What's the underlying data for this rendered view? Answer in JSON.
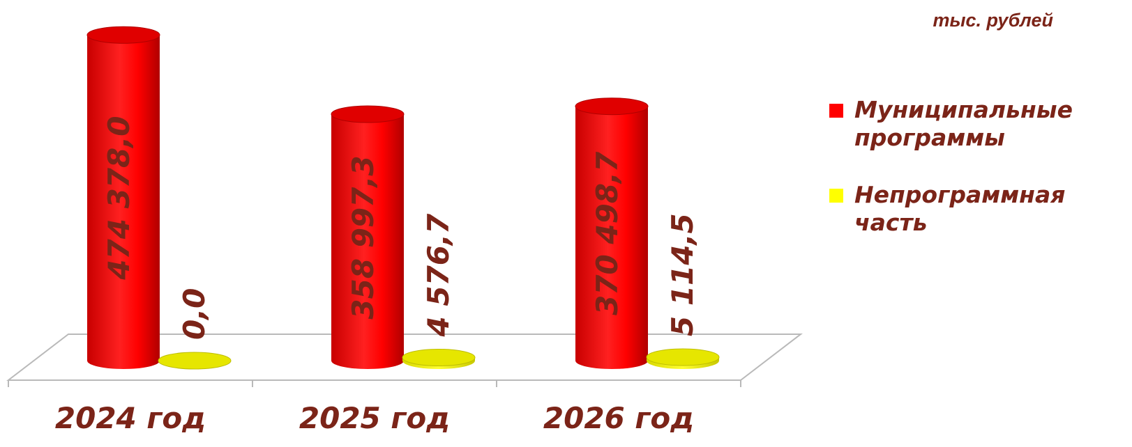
{
  "unit_label": "тыс. рублей",
  "chart_data": {
    "type": "bar",
    "categories": [
      "2024 год",
      "2025 год",
      "2026 год"
    ],
    "series": [
      {
        "name": "Муниципальные программы",
        "values": [
          474378.0,
          358997.3,
          370498.7
        ],
        "labels": [
          "474 378,0",
          "358 997,3",
          "370 498,7"
        ],
        "color": "#ff0000"
      },
      {
        "name": "Непрограммная часть",
        "values": [
          0.0,
          4576.7,
          5114.5
        ],
        "labels": [
          "0,0",
          "4 576,7",
          "5 114,5"
        ],
        "color": "#ffff00"
      }
    ],
    "title": "",
    "xlabel": "",
    "ylabel": "",
    "ylim": [
      0,
      500000
    ],
    "grid": false,
    "legend_position": "right",
    "style": "3d-cylinder"
  },
  "colors": {
    "text": "#7b2418",
    "floor_line": "#b9b9b9"
  }
}
